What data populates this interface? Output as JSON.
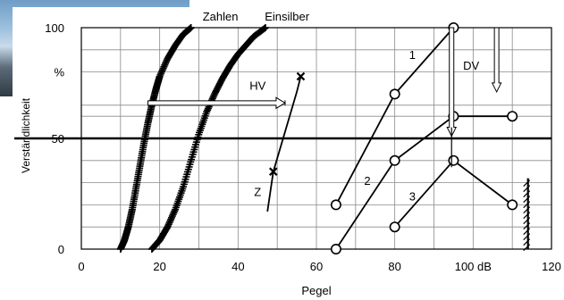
{
  "chart_data": {
    "type": "line",
    "title": "",
    "xlabel": "Pegel",
    "ylabel": "Verständlichkeit",
    "xlim": [
      0,
      120
    ],
    "ylim": [
      0,
      100
    ],
    "x_ticks": [
      {
        "value": 0,
        "label": "0"
      },
      {
        "value": 20,
        "label": "20"
      },
      {
        "value": 40,
        "label": "40"
      },
      {
        "value": 60,
        "label": "60"
      },
      {
        "value": 80,
        "label": "80"
      },
      {
        "value": 100,
        "label": "100 dB"
      },
      {
        "value": 120,
        "label": "120"
      }
    ],
    "y_ticks": [
      {
        "value": 0,
        "label": "0"
      },
      {
        "value": 50,
        "label": "50"
      },
      {
        "value": 80,
        "label": "%"
      },
      {
        "value": 100,
        "label": "100"
      }
    ],
    "series": [
      {
        "name": "Zahlen",
        "style": "dense-markers",
        "x": [
          10,
          11,
          12,
          13,
          14,
          15,
          16,
          17,
          18,
          19,
          20,
          22,
          24,
          26,
          28
        ],
        "y": [
          0,
          4,
          10,
          18,
          28,
          38,
          48,
          57,
          65,
          72,
          78,
          86,
          92,
          97,
          100
        ]
      },
      {
        "name": "Einsilber",
        "style": "dense-markers",
        "x": [
          18,
          20,
          22,
          24,
          26,
          28,
          30,
          32,
          34,
          36,
          38,
          40,
          42,
          44,
          47
        ],
        "y": [
          0,
          4,
          10,
          18,
          28,
          40,
          52,
          62,
          70,
          77,
          83,
          88,
          92,
          96,
          100
        ]
      },
      {
        "name": "Z",
        "style": "x-markers",
        "x": [
          47.5,
          49,
          55,
          56
        ],
        "y": [
          17,
          35,
          71,
          78
        ]
      },
      {
        "name": "1",
        "style": "circle-markers",
        "x": [
          65,
          80,
          95
        ],
        "y": [
          20,
          70,
          100
        ]
      },
      {
        "name": "2",
        "style": "circle-markers",
        "x": [
          65,
          80,
          95,
          110
        ],
        "y": [
          0,
          40,
          60,
          60
        ]
      },
      {
        "name": "3",
        "style": "circle-markers",
        "x": [
          80,
          95,
          110
        ],
        "y": [
          10,
          40,
          20
        ]
      }
    ],
    "annotations": [
      {
        "text": "Zahlen"
      },
      {
        "text": "Einsilber"
      },
      {
        "text": "HV"
      },
      {
        "text": "Z"
      },
      {
        "text": "DV"
      },
      {
        "text": "1"
      },
      {
        "text": "2"
      },
      {
        "text": "3"
      }
    ],
    "reference_line": {
      "y": 50
    },
    "grid": true,
    "colors": {
      "line": "#000000",
      "arrow": "#ffffff",
      "background": "#ffffff"
    }
  }
}
